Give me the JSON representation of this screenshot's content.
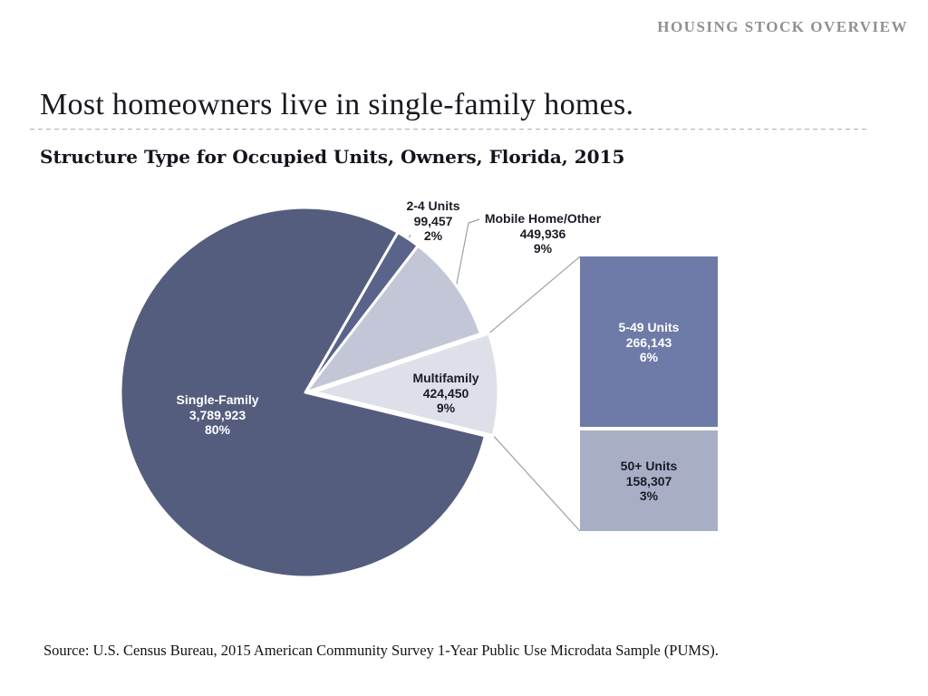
{
  "header": {
    "label": "HOUSING STOCK OVERVIEW"
  },
  "title": "Most homeowners live in single-family homes.",
  "subtitle": "Structure Type for Occupied Units, Owners, Florida, 2015",
  "source": "Source: U.S. Census Bureau, 2015 American Community Survey 1-Year Public Use Microdata Sample (PUMS).",
  "colors": {
    "background": "#ffffff",
    "kicker_text": "#909094",
    "title_text": "#181820",
    "divider": "#a9aeb8",
    "connector_line": "#9aa0a8",
    "slice_separator": "#ffffff"
  },
  "chart_data": {
    "type": "pie",
    "title": "Structure Type for Occupied Units, Owners, Florida, 2015",
    "legend": "none",
    "slices": [
      {
        "name": "Single-Family",
        "value": 3789923,
        "value_label": "3,789,923",
        "pct": "80%",
        "color": "#545d7d",
        "text_color": "#ffffff",
        "exploded": false
      },
      {
        "name": "2-4 Units",
        "value": 99457,
        "value_label": "99,457",
        "pct": "2%",
        "color": "#5a6389",
        "text_color": "#1b1b26",
        "exploded": false
      },
      {
        "name": "Mobile Home/Other",
        "value": 449936,
        "value_label": "449,936",
        "pct": "9%",
        "color": "#c2c6d6",
        "text_color": "#1b1b26",
        "exploded": false
      },
      {
        "name": "Multifamily",
        "value": 424450,
        "value_label": "424,450",
        "pct": "9%",
        "color": "#dde0e9",
        "text_color": "#1b1b26",
        "exploded": true
      }
    ],
    "callout_bars": [
      {
        "name": "5-49 Units",
        "value": 266143,
        "value_label": "266,143",
        "pct": "6%",
        "color": "#6e7aa7",
        "text_color": "#ffffff"
      },
      {
        "name": "50+ Units",
        "value": 158307,
        "value_label": "158,307",
        "pct": "3%",
        "color": "#a8aec5",
        "text_color": "#1b1b26"
      }
    ]
  }
}
